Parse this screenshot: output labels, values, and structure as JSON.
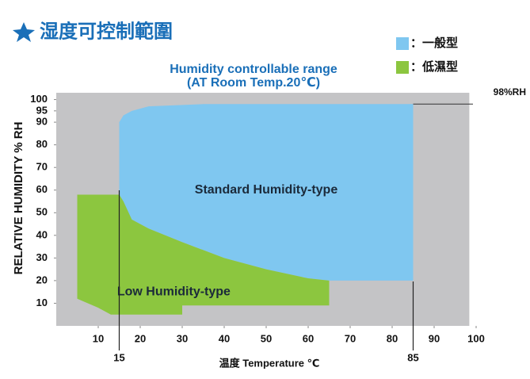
{
  "chart_data": {
    "type": "area",
    "title": "湿度可控制範圍",
    "subtitle": [
      "Humidity controllable range",
      "(AT Room Temp.20℃)"
    ],
    "xlabel": "温度 Temperature ℃",
    "ylabel": "RELATIVE HUMIDITY % RH",
    "xlim": [
      0,
      100
    ],
    "ylim": [
      0,
      103
    ],
    "xticks": [
      10,
      20,
      30,
      40,
      50,
      60,
      70,
      80,
      90,
      100
    ],
    "yticks": [
      10,
      20,
      30,
      40,
      50,
      60,
      70,
      80,
      90,
      95,
      100
    ],
    "vlines": [
      15,
      85
    ],
    "hline": {
      "value": 98,
      "label": "98%RH"
    },
    "series": [
      {
        "name": "：一般型",
        "color": "#7fc7f0",
        "label": "Standard Humidity-type",
        "x": [
          15,
          15,
          16,
          18,
          22,
          35,
          85,
          85,
          65,
          60,
          50,
          40,
          30,
          22,
          18,
          16
        ],
        "y": [
          55,
          90,
          93,
          95,
          97,
          98,
          98,
          20,
          20,
          21,
          25,
          30,
          37,
          43,
          47,
          52
        ]
      },
      {
        "name": "：低濕型",
        "color": "#8cc63f",
        "label": "Low Humidity-type",
        "x": [
          5,
          15,
          16,
          18,
          22,
          30,
          40,
          50,
          60,
          65,
          65,
          30,
          30,
          13,
          10,
          5
        ],
        "y": [
          58,
          58,
          55,
          47,
          43,
          37,
          30,
          25,
          21,
          20,
          9,
          9,
          5,
          5,
          8,
          12
        ]
      }
    ]
  }
}
